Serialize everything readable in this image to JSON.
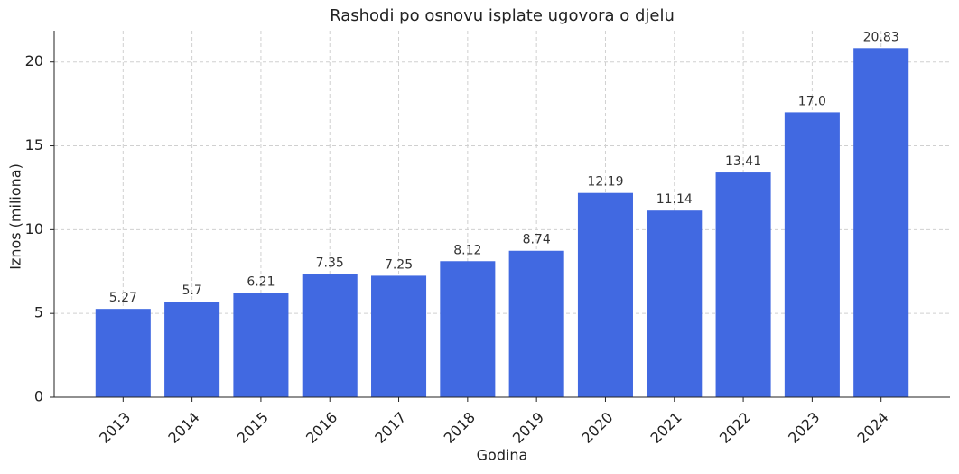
{
  "chart_data": {
    "type": "bar",
    "title": "Rashodi po osnovu isplate ugovora o djelu",
    "x_label": "Godina",
    "y_label": "Iznos (miliona)",
    "categories": [
      "2013",
      "2014",
      "2015",
      "2016",
      "2017",
      "2018",
      "2019",
      "2020",
      "2021",
      "2022",
      "2023",
      "2024"
    ],
    "values": [
      5.27,
      5.7,
      6.21,
      7.35,
      7.25,
      8.12,
      8.74,
      12.19,
      11.14,
      13.41,
      17.0,
      20.83
    ],
    "value_labels": [
      "5.27",
      "5.7",
      "6.21",
      "7.35",
      "7.25",
      "8.12",
      "8.74",
      "12.19",
      "11.14",
      "13.41",
      "17.0",
      "20.83"
    ],
    "color": "#4169e1",
    "ylim": [
      0,
      21.87
    ],
    "yticks": [
      0,
      5,
      10,
      15,
      20
    ],
    "grid": true
  }
}
